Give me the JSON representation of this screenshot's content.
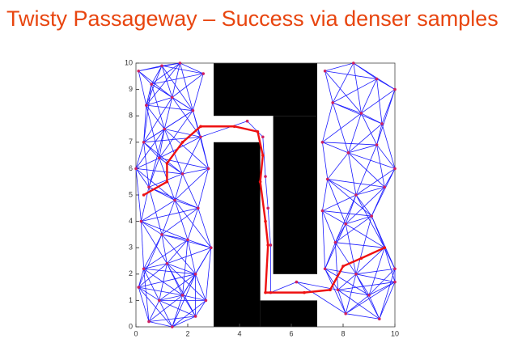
{
  "chart_data": {
    "type": "scatter",
    "title": "Twisty Passageway – Success via denser samples",
    "xlim": [
      0,
      10
    ],
    "ylim": [
      0,
      10
    ],
    "xticks": [
      0,
      2,
      4,
      6,
      8,
      10
    ],
    "yticks": [
      0,
      1,
      2,
      3,
      4,
      5,
      6,
      7,
      8,
      9,
      10
    ],
    "edge_color": "#1a1aff",
    "obstacle_color": "#000000",
    "obstacles": [
      {
        "xlim": [
          3,
          7
        ],
        "ylim": [
          8,
          10
        ]
      },
      {
        "xlim": [
          5.3,
          7
        ],
        "ylim": [
          2,
          8
        ]
      },
      {
        "xlim": [
          3,
          4.8
        ],
        "ylim": [
          0,
          7
        ]
      },
      {
        "xlim": [
          4.8,
          7
        ],
        "ylim": [
          0,
          1
        ]
      }
    ],
    "series": [
      {
        "color": "#d02060",
        "mode": "markers",
        "x": [
          0.1,
          0.6,
          1.0,
          1.7,
          2.6,
          0.4,
          1.4,
          2.2,
          0.3,
          1.1,
          2.5,
          0.0,
          0.9,
          1.8,
          2.8,
          0.5,
          1.5,
          2.4,
          0.2,
          1.0,
          2.0,
          2.9,
          0.3,
          1.2,
          2.3,
          0.1,
          0.9,
          1.8,
          2.7,
          0.5,
          1.4,
          2.3,
          4.3,
          4.9,
          5.0,
          5.1,
          5.2,
          5.2,
          6.2,
          7.3,
          8.4,
          9.3,
          10,
          7.6,
          8.7,
          9.5,
          7.2,
          8.2,
          9.3,
          10,
          7.4,
          8.5,
          9.6,
          7.2,
          8.1,
          9.1,
          7.7,
          9.6,
          7.3,
          8.5,
          10,
          7.8,
          9.0,
          10,
          8.1,
          9.4
        ],
        "values": [
          9.7,
          9.2,
          9.9,
          10,
          9.6,
          8.4,
          8.7,
          8.2,
          7.0,
          7.5,
          7.2,
          6.0,
          6.4,
          5.8,
          6.0,
          5.3,
          4.8,
          4.5,
          4.0,
          3.5,
          3.3,
          3.0,
          2.2,
          2.4,
          2.0,
          1.5,
          1.0,
          1.2,
          1.0,
          0.2,
          0.0,
          0.4,
          7.8,
          7.2,
          5.7,
          4.5,
          3.1,
          1.3,
          1.7,
          9.7,
          10,
          9.4,
          9.0,
          8.5,
          8.1,
          7.7,
          7.0,
          6.6,
          6.9,
          6.0,
          5.6,
          5.0,
          5.3,
          4.4,
          3.9,
          4.2,
          3.2,
          3.0,
          2.2,
          2.0,
          2.2,
          1.4,
          1.2,
          1.7,
          0.5,
          0.3
        ]
      },
      {
        "color": "#ee1111",
        "mode": "lines+markers",
        "x": [
          0.3,
          1.2,
          1.2,
          1.8,
          2.5,
          3.8,
          4.7,
          4.9,
          4.8,
          5.0,
          5.1,
          5.0,
          6.5,
          7.5,
          8.0,
          8.7,
          9.6
        ],
        "values": [
          5.0,
          5.5,
          6.2,
          7.0,
          7.6,
          7.6,
          7.4,
          6.5,
          5.5,
          4.0,
          3.1,
          1.3,
          1.3,
          1.4,
          2.3,
          2.6,
          3.0
        ]
      }
    ]
  }
}
